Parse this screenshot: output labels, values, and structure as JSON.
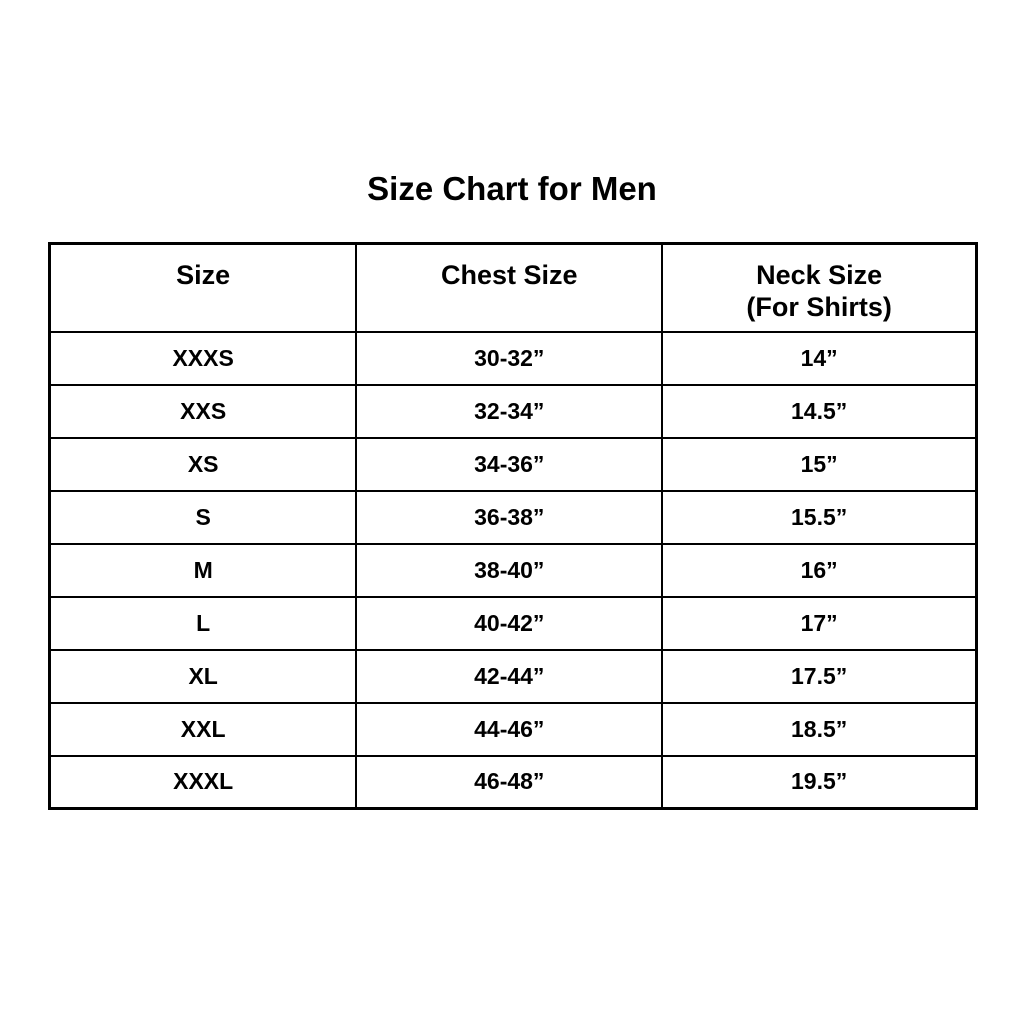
{
  "title": "Size Chart for Men",
  "colors": {
    "background": "#ffffff",
    "text": "#000000",
    "border": "#000000"
  },
  "chart_data": {
    "type": "table",
    "title": "Size Chart for Men",
    "columns": [
      "Size",
      "Chest Size",
      "Neck Size (For Shirts)"
    ],
    "header": {
      "col1": "Size",
      "col2": "Chest Size",
      "col3_line1": "Neck Size",
      "col3_line2": "(For Shirts)"
    },
    "rows": [
      {
        "size": "XXXS",
        "chest": "30-32”",
        "neck": "14”"
      },
      {
        "size": "XXS",
        "chest": "32-34”",
        "neck": "14.5”"
      },
      {
        "size": "XS",
        "chest": "34-36”",
        "neck": "15”"
      },
      {
        "size": "S",
        "chest": "36-38”",
        "neck": "15.5”"
      },
      {
        "size": "M",
        "chest": "38-40”",
        "neck": "16”"
      },
      {
        "size": "L",
        "chest": "40-42”",
        "neck": "17”"
      },
      {
        "size": "XL",
        "chest": "42-44”",
        "neck": "17.5”"
      },
      {
        "size": "XXL",
        "chest": "44-46”",
        "neck": "18.5”"
      },
      {
        "size": "XXXL",
        "chest": "46-48”",
        "neck": "19.5”"
      }
    ]
  }
}
